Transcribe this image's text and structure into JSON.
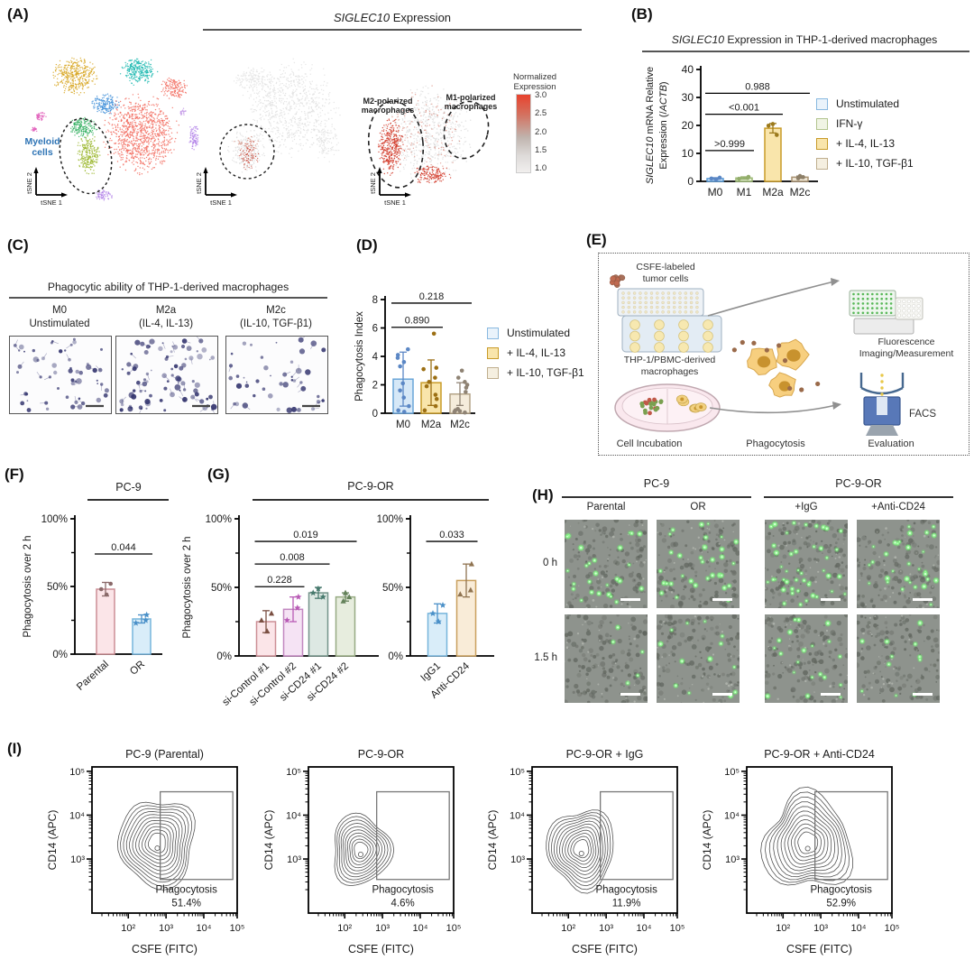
{
  "A": {
    "label": "(A)",
    "title_italic": "SIGLEC10",
    "title_rest": " Expression",
    "myeloid_line1": "Myeloid",
    "myeloid_line2": "cells",
    "axis_x": "tSNE 1",
    "axis_y": "tSNE 2",
    "m2_line1": "M2-polarized",
    "m2_line2": "macrophages",
    "m1_line1": "M1-polarized",
    "m1_line2": "macrophages",
    "colorbar": {
      "title_line1": "Normalized",
      "title_line2": "Expression",
      "ticks": [
        "3.0",
        "2.5",
        "2.0",
        "1.5",
        "1.0"
      ],
      "top_color": "#e8432e",
      "bottom_color": "#f1efee"
    }
  },
  "B": {
    "label": "(B)",
    "title_italic": "SIGLEC10",
    "title_rest": " Expression in THP-1-derived macrophages",
    "ylabel": [
      [
        {
          "t": "SIGLEC10",
          "i": 1
        },
        {
          "t": " mRNA Relative"
        }
      ],
      [
        {
          "t": "Expression (/"
        },
        {
          "t": "ACTB",
          "i": 1
        },
        {
          "t": ")"
        }
      ]
    ],
    "chart": {
      "type": "bar",
      "categories": [
        "M0",
        "M1",
        "M2a",
        "M2c"
      ],
      "values": [
        1.0,
        1.2,
        19,
        1.5
      ],
      "errors": [
        0.3,
        0.4,
        1.7,
        0.4
      ],
      "dots": [
        [
          0.7,
          1.0,
          1.3
        ],
        [
          0.9,
          1.2,
          1.6
        ],
        [
          16.6,
          19.9,
          20.5
        ],
        [
          1.1,
          1.5,
          1.9
        ]
      ],
      "markers": [
        "circle",
        "circle",
        "circle",
        "circle"
      ],
      "fills": [
        "#cfe2f4",
        "#e6eed6",
        "#f9e5ab",
        "#efe7d6"
      ],
      "strokes": [
        "#5b9bd5",
        "#9cb974",
        "#c89b28",
        "#a99272"
      ],
      "dotColors": [
        "#5b87c5",
        "#93ad6b",
        "#9c7a1c",
        "#8d7f68"
      ],
      "ylim": [
        0,
        40
      ],
      "yticks": [
        0,
        10,
        20,
        30,
        40
      ],
      "pvalues": [
        {
          "a": 0,
          "b": 1,
          "y": 11,
          "label": ">0.999"
        },
        {
          "a": 0,
          "b": 2,
          "y": 24,
          "label": "<0.001"
        },
        {
          "a": 0,
          "b": 3,
          "y": 31.5,
          "label": "0.988"
        }
      ]
    },
    "legend": [
      {
        "label": "Unstimulated",
        "fill": "#eaf3fb",
        "stroke": "#88b8e0"
      },
      {
        "label": "IFN-γ",
        "fill": "#f0f4e4",
        "stroke": "#b2c48e"
      },
      {
        "label": "+ IL-4, IL-13",
        "fill": "#f9e5ab",
        "stroke": "#c89b28"
      },
      {
        "label": "+ IL-10, TGF-β1",
        "fill": "#f5efe0",
        "stroke": "#bfae8e"
      }
    ]
  },
  "C": {
    "label": "(C)",
    "title": "Phagocytic ability of THP-1-derived macrophages",
    "columns": [
      {
        "line1": "M0",
        "line2": "Unstimulated"
      },
      {
        "line1": "M2a",
        "line2": "(IL-4, IL-13)"
      },
      {
        "line1": "M2c",
        "line2": "(IL-10, TGF-β1)"
      }
    ]
  },
  "D": {
    "label": "(D)",
    "ylabel": "Phagocytosis Index",
    "chart": {
      "type": "bar",
      "categories": [
        "M0",
        "M2a",
        "M2c"
      ],
      "values": [
        2.4,
        2.15,
        1.35
      ],
      "errors": [
        1.9,
        1.6,
        0.8
      ],
      "dots": [
        [
          0.1,
          0.2,
          0.5,
          1.1,
          1.6,
          2.1,
          3.3,
          3.6,
          3.9,
          4.1,
          4.5
        ],
        [
          0.2,
          0.5,
          1.0,
          1.3,
          1.9,
          2.2,
          2.5,
          3.1,
          3.2,
          5.6
        ],
        [
          0.05,
          0.1,
          0.15,
          0.2,
          0.3,
          1.5,
          1.8,
          2.0,
          2.2,
          2.5,
          3.0
        ]
      ],
      "markers": [
        "circle",
        "circle",
        "circle"
      ],
      "fills": [
        "#d6e8f7",
        "#f9e5ab",
        "#f5ecdb"
      ],
      "strokes": [
        "#6aa5d8",
        "#c89b28",
        "#b4a488"
      ],
      "dotColors": [
        "#5b87c5",
        "#9c6f14",
        "#8f8374"
      ],
      "ylim": [
        0,
        8
      ],
      "yticks": [
        0,
        2,
        4,
        6,
        8
      ],
      "pvalues": [
        {
          "a": 0,
          "b": 1,
          "y": 6.05,
          "label": "0.890"
        },
        {
          "a": 0,
          "b": 2,
          "y": 7.75,
          "label": "0.218"
        }
      ]
    },
    "legend": [
      {
        "label": "Unstimulated",
        "fill": "#eaf3fb",
        "stroke": "#88b8e0"
      },
      {
        "label": "+ IL-4, IL-13",
        "fill": "#f9e5ab",
        "stroke": "#c89b28"
      },
      {
        "label": "+ IL-10, TGF-β1",
        "fill": "#f5efe0",
        "stroke": "#bfae8e"
      }
    ]
  },
  "E": {
    "label": "(E)",
    "labels": {
      "csfe_line1": "CSFE-labeled",
      "csfe_line2": "tumor cells",
      "thp_line1": "THP-1/PBMC-derived",
      "thp_line2": "macrophages",
      "incubation": "Cell Incubation",
      "phagocytosis": "Phagocytosis",
      "evaluation": "Evaluation",
      "fluor_line1": "Fluorescence",
      "fluor_line2": "Imaging/Measurement",
      "facs": "FACS"
    }
  },
  "F": {
    "label": "(F)",
    "title": "PC-9",
    "ylabel": "Phagocytosis over 2 h",
    "chart": {
      "type": "bar",
      "categories": [
        "Parental",
        "OR"
      ],
      "values": [
        48,
        26
      ],
      "errors": [
        5,
        3
      ],
      "dots": [
        [
          44,
          48,
          52
        ],
        [
          23,
          25,
          29
        ]
      ],
      "markers": [
        "circle",
        "star"
      ],
      "fills": [
        "#fbe5e8",
        "#d9edf9"
      ],
      "strokes": [
        "#cc8f96",
        "#77b5dc"
      ],
      "dotColors": [
        "#8a6a6a",
        "#4a90c8"
      ],
      "ylim": [
        0,
        100
      ],
      "yticks": [
        0,
        50,
        100
      ],
      "ytickLabels": [
        "0%",
        "50%",
        "100%"
      ],
      "pvalues": [
        {
          "a": 0,
          "b": 1,
          "y": 74,
          "label": "0.044"
        }
      ]
    }
  },
  "G": {
    "label": "(G)",
    "title": "PC-9-OR",
    "ylabel": "Phagocytosis over 2 h",
    "chart_left": {
      "type": "bar",
      "categories": [
        "si-Control #1",
        "si-Control #2",
        "si-CD24 #1",
        "si-CD24 #2"
      ],
      "values": [
        25,
        34,
        46,
        43
      ],
      "errors": [
        8,
        9,
        4,
        3
      ],
      "dots": [
        [
          18,
          26,
          31
        ],
        [
          26,
          35,
          43
        ],
        [
          43,
          46,
          49
        ],
        [
          40,
          43,
          46
        ]
      ],
      "markers": [
        "triangle",
        "star",
        "star",
        "triangle"
      ],
      "fills": [
        "#fbe5e8",
        "#f5e3f4",
        "#dde8e3",
        "#e7edde"
      ],
      "strokes": [
        "#cc8f96",
        "#c287c0",
        "#74948a",
        "#97ab83"
      ],
      "dotColors": [
        "#7a4f42",
        "#b85ab5",
        "#47796d",
        "#64825a"
      ],
      "ylim": [
        0,
        100
      ],
      "yticks": [
        0,
        50,
        100
      ],
      "ytickLabels": [
        "0%",
        "50%",
        "100%"
      ],
      "pvalues": [
        {
          "a": 0,
          "b": 1,
          "y": 50.5,
          "label": "0.228"
        },
        {
          "a": 0,
          "b": 2,
          "y": 67,
          "label": "0.008"
        },
        {
          "a": 0,
          "b": 3,
          "y": 83.5,
          "label": "0.019"
        }
      ]
    },
    "chart_right": {
      "type": "bar",
      "categories": [
        "IgG1",
        "Anti-CD24"
      ],
      "values": [
        31,
        55
      ],
      "errors": [
        7,
        12
      ],
      "dots": [
        [
          25,
          31,
          37
        ],
        [
          45,
          48,
          67
        ]
      ],
      "markers": [
        "star",
        "triangle"
      ],
      "fills": [
        "#d9edf9",
        "#f9ecd8"
      ],
      "strokes": [
        "#77b5dc",
        "#c9a05e"
      ],
      "dotColors": [
        "#4a90c8",
        "#8f7350"
      ],
      "ylim": [
        0,
        100
      ],
      "yticks": [
        0,
        50,
        100
      ],
      "ytickLabels": [
        "0%",
        "50%",
        "100%"
      ],
      "pvalues": [
        {
          "a": 0,
          "b": 1,
          "y": 83.5,
          "label": "0.033"
        }
      ]
    }
  },
  "H": {
    "label": "(H)",
    "group1": "PC-9",
    "group2": "PC-9-OR",
    "columns": [
      "Parental",
      "OR",
      "+IgG",
      "+Anti-CD24"
    ],
    "rows": [
      "0 h",
      "1.5 h"
    ],
    "green_counts": [
      [
        26,
        32,
        44,
        30
      ],
      [
        5,
        13,
        20,
        11
      ]
    ]
  },
  "I": {
    "label": "(I)",
    "xlabel": "CSFE (FITC)",
    "ylabel": "CD14 (APC)",
    "xticks": [
      "10²",
      "10³",
      "10⁴",
      "10⁵"
    ],
    "yticks": [
      "10⁵",
      "10⁴",
      "10³"
    ],
    "gate_label": "Phagocytosis",
    "plots": [
      {
        "title": "PC-9 (Parental)",
        "percent": "51.4%"
      },
      {
        "title": "PC-9-OR",
        "percent": "4.6%"
      },
      {
        "title": "PC-9-OR + IgG",
        "percent": "11.9%"
      },
      {
        "title": "PC-9-OR + Anti-CD24",
        "percent": "52.9%"
      }
    ]
  }
}
